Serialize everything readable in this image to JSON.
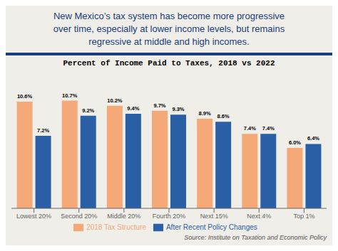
{
  "chart_data": {
    "type": "bar",
    "title": "Percent of Income Paid to Taxes, 2018 vs 2022",
    "subtitle": "New Mexico’s tax system has become more progressive\nover time, especially at lower income levels, but remains\nregressive at middle and high incomes.",
    "annotations": [
      "Source: Institute on Taxation and Economic Policy"
    ],
    "categories": [
      "Lowest 20%",
      "Second 20%",
      "Middle 20%",
      "Fourth 20%",
      "Next 15%",
      "Next 4%",
      "Top 1%"
    ],
    "series": [
      {
        "name": "2018 Tax Structure",
        "color": "#F5A878",
        "values": [
          10.6,
          10.7,
          10.2,
          9.7,
          8.9,
          7.4,
          6.0
        ],
        "value_labels": [
          "10.6%",
          "10.7%",
          "10.2%",
          "9.7%",
          "8.9%",
          "7.4%",
          "6.0%"
        ]
      },
      {
        "name": "After Recent Policy Changes",
        "color": "#2B5FA5",
        "values": [
          7.2,
          9.2,
          9.4,
          9.3,
          8.6,
          7.4,
          6.4
        ],
        "value_labels": [
          "7.2%",
          "9.2%",
          "9.4%",
          "9.3%",
          "8.6%",
          "7.4%",
          "6.4%"
        ]
      }
    ],
    "ylim": [
      0,
      13.0
    ],
    "data_labels": true,
    "tick_labels": "x",
    "grid": false,
    "legend": "bottom"
  }
}
